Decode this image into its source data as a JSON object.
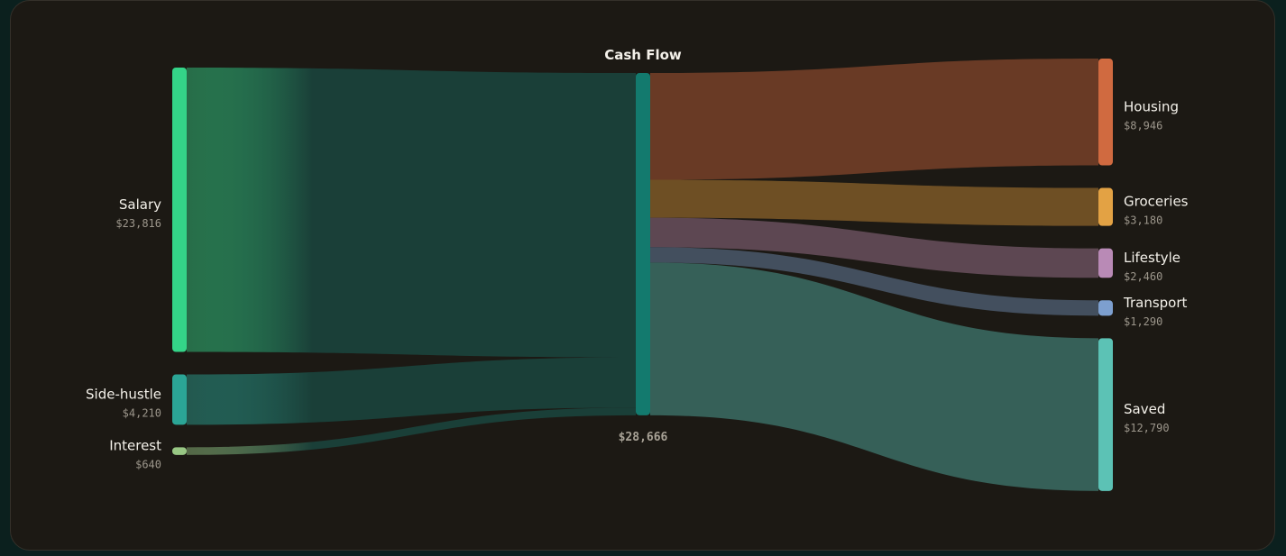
{
  "chart_data": {
    "type": "sankey",
    "title": "Cash Flow",
    "center": {
      "name": "Cash Flow",
      "total_label": "$28,666",
      "color": "#137a6e"
    },
    "sources": [
      {
        "name": "Salary",
        "value": 23816,
        "value_label": "$23,816",
        "color": "#34d488"
      },
      {
        "name": "Side-hustle",
        "value": 4210,
        "value_label": "$4,210",
        "color": "#2ba596"
      },
      {
        "name": "Interest",
        "value": 640,
        "value_label": "$640",
        "color": "#98c784"
      }
    ],
    "targets": [
      {
        "name": "Housing",
        "value": 8946,
        "value_label": "$8,946",
        "color": "#d06a40"
      },
      {
        "name": "Groceries",
        "value": 3180,
        "value_label": "$3,180",
        "color": "#e3a244"
      },
      {
        "name": "Lifestyle",
        "value": 2460,
        "value_label": "$2,460",
        "color": "#b98ab6"
      },
      {
        "name": "Transport",
        "value": 1290,
        "value_label": "$1,290",
        "color": "#7d9fcf"
      },
      {
        "name": "Saved",
        "value": 12790,
        "value_label": "$12,790",
        "color": "#5cc2b5"
      }
    ],
    "flow_colors": {
      "income_band": "#1a3f38",
      "Housing": "#693a25",
      "Groceries": "#6e4f24",
      "Lifestyle": "#5d4752",
      "Transport": "#434f5e",
      "Saved": "#366058"
    }
  }
}
